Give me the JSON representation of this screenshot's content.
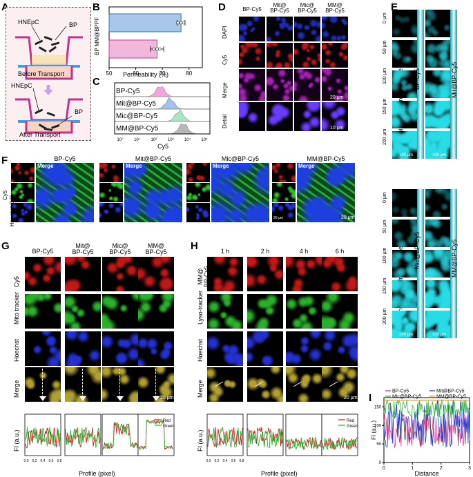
{
  "A": {
    "letter": "A",
    "hnepc1": "HNEpC",
    "bp1": "BP",
    "before": "Before Transport",
    "hnepc2": "HNEpC",
    "bp2": "BP",
    "after": "After Transport"
  },
  "B": {
    "letter": "B",
    "ylabel_top": "BP",
    "ylabel_bottom": "MM@BPPF",
    "xlabel": "Permeability (%)",
    "ticks": [
      "50",
      "60",
      "70",
      "80"
    ],
    "chart_data": {
      "type": "bar",
      "orientation": "horizontal",
      "categories": [
        "BP",
        "MM@BPPF"
      ],
      "values": [
        77,
        68
      ],
      "errors": [
        1.5,
        2.5
      ],
      "xlim": [
        50,
        85
      ],
      "colors": [
        "#a9c7e8",
        "#f2b8dc"
      ],
      "xlabel": "Permeability (%)"
    }
  },
  "C": {
    "letter": "C",
    "xlabel": "Cy5",
    "ticks": [
      "10⁰",
      "10¹",
      "10²",
      "10³",
      "10⁴",
      "10⁵"
    ],
    "chart_data": {
      "type": "area",
      "series": [
        {
          "name": "BP-Cy5",
          "peak": 2.4,
          "color": "#f4a6d7"
        },
        {
          "name": "Mit@BP-Cy5",
          "peak": 2.9,
          "color": "#9fc4ea"
        },
        {
          "name": "Mic@BP-Cy5",
          "peak": 3.4,
          "color": "#a8e6c3"
        },
        {
          "name": "MM@BP-Cy5",
          "peak": 3.6,
          "color": "#b8b8b8"
        }
      ],
      "xlim": [
        0,
        5
      ],
      "xscale": "log"
    }
  },
  "D": {
    "letter": "D",
    "cols": [
      "BP-Cy5",
      "Mit@\nBP-Cy5",
      "Mic@\nBP-Cy5",
      "MM@\nBP-Cy5"
    ],
    "rows": [
      "DAPI",
      "Cy5",
      "Merge",
      "Detail"
    ],
    "scale1": "20 μm",
    "scale2": "10 μm"
  },
  "E": {
    "letter": "E",
    "ylabel": "Scanning depth from surface",
    "depths": [
      "0 μm",
      "50 μm",
      "100 μm",
      "150 μm",
      "200 μm"
    ],
    "top_labels": [
      "BP-Cy5",
      "Mit@BP-Cy5"
    ],
    "bottom_labels": [
      "Mic@BP-Cy5",
      "MM@BP-Cy5"
    ],
    "scale": "100 μm"
  },
  "F": {
    "letter": "F",
    "groups": [
      "BP-Cy5",
      "Mit@BP-Cy5",
      "Mic@BP-Cy5",
      "MM@BP-Cy5"
    ],
    "merge": "Merge",
    "rows": [
      "Cy5",
      "DiO",
      "Hoechst"
    ],
    "scale": "20 μm",
    "scale_small": "20 μm"
  },
  "G": {
    "letter": "G",
    "cols": [
      "BP-Cy5",
      "Mit@\nBP-Cy5",
      "Mic@\nBP-Cy5",
      "MM@\nBP-Cy5"
    ],
    "rows": [
      "Cy5",
      "Mito tracker",
      "Hoechst",
      "Merge"
    ],
    "scale": "20 μm",
    "ylabel": "FI (a.u.)",
    "xlabel": "Profile (pixel)",
    "legend": [
      "Red",
      "Green"
    ],
    "xticks": [
      "0.0",
      "0.2",
      "0.4",
      "0.6",
      "0.8"
    ]
  },
  "H": {
    "letter": "H",
    "cols": [
      "1 h",
      "2 h",
      "4 h",
      "6 h"
    ],
    "rows": [
      "MM@\nBP-Cy5",
      "Lyso-tracker",
      "Hoechst",
      "Merge"
    ],
    "scale": "20 μm",
    "ylabel": "FI (a.u.)",
    "xlabel": "Profile (pixel)",
    "legend": [
      "Red",
      "Green"
    ],
    "xticks": [
      "0.0",
      "0.2",
      "0.4",
      "0.6",
      "0.8"
    ]
  },
  "I": {
    "letter": "I",
    "ylabel": "FI (a.u.)",
    "xlabel": "Distance",
    "yticks": [
      "0",
      "50",
      "100",
      "150"
    ],
    "xticks": [
      "0",
      "1",
      "2",
      "3"
    ],
    "chart_data": {
      "type": "line",
      "series": [
        {
          "name": "BP-Cy5",
          "color": "#e0357a"
        },
        {
          "name": "Mit@BP-Cy5",
          "color": "#1f3bd6"
        },
        {
          "name": "Mic@BP-Cy5",
          "color": "#2fb52f"
        },
        {
          "name": "MM@BP-Cy5",
          "color": "#f0a020"
        }
      ],
      "xlim": [
        0,
        3
      ],
      "ylim": [
        0,
        175
      ]
    }
  }
}
